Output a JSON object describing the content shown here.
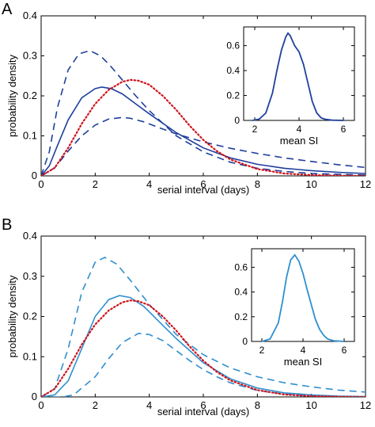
{
  "colors": {
    "panelA_blue": "#1f3f9c",
    "panelB_blue": "#2f8fd0",
    "red": "#d0141c"
  },
  "chart_data": [
    {
      "panel": "A",
      "type": "line",
      "xlabel": "serial interval (days)",
      "ylabel": "probability density",
      "xlim": [
        0,
        12
      ],
      "ylim": [
        0,
        0.4
      ],
      "xticks": [
        0,
        2,
        4,
        6,
        8,
        10,
        12
      ],
      "yticks": [
        0,
        0.1,
        0.2,
        0.3,
        0.4
      ],
      "series": [
        {
          "style": "solid",
          "color": "#1f3f9c",
          "x": [
            0,
            0.3,
            0.6,
            1.0,
            1.5,
            2.0,
            2.25,
            2.6,
            3.0,
            3.5,
            4.0,
            5.0,
            6.0,
            7.0,
            8.0,
            9.0,
            10.0,
            11.0,
            12.0
          ],
          "y": [
            0,
            0.025,
            0.075,
            0.14,
            0.195,
            0.218,
            0.222,
            0.218,
            0.205,
            0.18,
            0.155,
            0.108,
            0.07,
            0.045,
            0.029,
            0.019,
            0.013,
            0.009,
            0.006
          ]
        },
        {
          "style": "dashed",
          "color": "#1f3f9c",
          "x": [
            0,
            0.3,
            0.6,
            1.0,
            1.4,
            1.8,
            2.2,
            2.6,
            3.0,
            3.5,
            4.0,
            5.0,
            6.0,
            7.0,
            8.0,
            9.0,
            10.0,
            11.0,
            12.0
          ],
          "y": [
            0,
            0.06,
            0.17,
            0.265,
            0.305,
            0.313,
            0.3,
            0.272,
            0.24,
            0.2,
            0.163,
            0.1,
            0.06,
            0.034,
            0.019,
            0.011,
            0.006,
            0.004,
            0.002
          ]
        },
        {
          "style": "dashed",
          "color": "#1f3f9c",
          "x": [
            0,
            0.5,
            1.0,
            1.5,
            2.0,
            2.5,
            3.0,
            3.3,
            3.8,
            4.5,
            5.0,
            6.0,
            7.0,
            8.0,
            9.0,
            10.0,
            11.0,
            12.0
          ],
          "y": [
            0,
            0.02,
            0.062,
            0.1,
            0.127,
            0.142,
            0.146,
            0.144,
            0.135,
            0.117,
            0.105,
            0.085,
            0.069,
            0.056,
            0.045,
            0.036,
            0.028,
            0.021
          ]
        },
        {
          "style": "dotted",
          "color": "#d0141c",
          "x": [
            0,
            0.5,
            1.0,
            1.5,
            2.0,
            2.5,
            3.0,
            3.3,
            3.6,
            4.0,
            4.5,
            5.0,
            5.5,
            6.0,
            6.5,
            7.0,
            8.0,
            9.0,
            10.0,
            11.0,
            12.0
          ],
          "y": [
            0,
            0.02,
            0.07,
            0.13,
            0.18,
            0.215,
            0.235,
            0.24,
            0.238,
            0.228,
            0.2,
            0.165,
            0.125,
            0.09,
            0.062,
            0.041,
            0.017,
            0.006,
            0.002,
            0.0005,
            0
          ]
        }
      ],
      "inset": {
        "xlabel": "mean SI",
        "xlim": [
          1.5,
          6.5
        ],
        "ylim": [
          0,
          0.75
        ],
        "xticks": [
          2,
          4,
          6
        ],
        "yticks": [
          0,
          0.2,
          0.4,
          0.6
        ],
        "color": "#1f3f9c",
        "x": [
          1.9,
          2.2,
          2.5,
          2.8,
          3.0,
          3.2,
          3.4,
          3.5,
          3.6,
          3.8,
          4.0,
          4.2,
          4.4,
          4.6,
          4.8,
          5.0,
          5.2,
          5.5,
          6.0
        ],
        "y": [
          0,
          0.01,
          0.06,
          0.22,
          0.4,
          0.56,
          0.67,
          0.7,
          0.68,
          0.6,
          0.55,
          0.45,
          0.3,
          0.15,
          0.06,
          0.02,
          0.008,
          0.002,
          0
        ]
      }
    },
    {
      "panel": "B",
      "type": "line",
      "xlabel": "serial interval (days)",
      "ylabel": "probability density",
      "xlim": [
        0,
        12
      ],
      "ylim": [
        0,
        0.4
      ],
      "xticks": [
        0,
        2,
        4,
        6,
        8,
        10,
        12
      ],
      "yticks": [
        0,
        0.1,
        0.2,
        0.3,
        0.4
      ],
      "series": [
        {
          "style": "solid",
          "color": "#2f8fd0",
          "x": [
            0,
            0.5,
            1.0,
            1.5,
            2.0,
            2.5,
            2.9,
            3.3,
            3.8,
            4.5,
            5.0,
            6.0,
            7.0,
            8.0,
            9.0,
            10.0,
            11.0,
            12.0
          ],
          "y": [
            0,
            0.005,
            0.04,
            0.12,
            0.2,
            0.242,
            0.252,
            0.247,
            0.225,
            0.178,
            0.145,
            0.085,
            0.045,
            0.022,
            0.01,
            0.005,
            0.002,
            0.001
          ]
        },
        {
          "style": "dashed",
          "color": "#2f8fd0",
          "x": [
            0,
            0.5,
            1.0,
            1.5,
            2.0,
            2.35,
            2.8,
            3.3,
            4.0,
            5.0,
            6.0,
            7.0,
            8.0,
            9.0,
            10.0,
            11.0,
            12.0
          ],
          "y": [
            0,
            0.02,
            0.12,
            0.26,
            0.335,
            0.347,
            0.33,
            0.29,
            0.23,
            0.155,
            0.105,
            0.072,
            0.05,
            0.035,
            0.025,
            0.017,
            0.012
          ]
        },
        {
          "style": "dashed",
          "color": "#2f8fd0",
          "x": [
            0,
            0.8,
            1.2,
            2.0,
            2.5,
            3.0,
            3.6,
            4.0,
            4.5,
            5.0,
            5.5,
            6.0,
            6.5,
            7.0,
            8.0,
            9.0,
            10.0,
            11.0,
            12.0
          ],
          "y": [
            0,
            0,
            0.005,
            0.05,
            0.095,
            0.135,
            0.158,
            0.155,
            0.14,
            0.115,
            0.09,
            0.068,
            0.05,
            0.035,
            0.016,
            0.007,
            0.003,
            0.001,
            0
          ]
        },
        {
          "style": "dotted",
          "color": "#d0141c",
          "x": [
            0,
            0.5,
            1.0,
            1.5,
            2.0,
            2.5,
            3.0,
            3.3,
            3.6,
            4.0,
            4.5,
            5.0,
            5.5,
            6.0,
            6.5,
            7.0,
            8.0,
            9.0,
            10.0,
            11.0,
            12.0
          ],
          "y": [
            0,
            0.02,
            0.07,
            0.13,
            0.18,
            0.215,
            0.235,
            0.24,
            0.238,
            0.228,
            0.2,
            0.165,
            0.125,
            0.09,
            0.062,
            0.041,
            0.017,
            0.006,
            0.002,
            0.0005,
            0
          ]
        }
      ],
      "inset": {
        "xlabel": "mean SI",
        "xlim": [
          1.5,
          6.5
        ],
        "ylim": [
          0,
          0.75
        ],
        "xticks": [
          2,
          4,
          6
        ],
        "yticks": [
          0,
          0.2,
          0.4,
          0.6
        ],
        "color": "#2f8fd0",
        "x": [
          2.0,
          2.4,
          2.8,
          3.0,
          3.2,
          3.4,
          3.6,
          3.8,
          4.0,
          4.2,
          4.4,
          4.6,
          4.8,
          5.0,
          5.2,
          5.5,
          6.0
        ],
        "y": [
          0,
          0.02,
          0.15,
          0.32,
          0.52,
          0.66,
          0.7,
          0.65,
          0.55,
          0.42,
          0.3,
          0.18,
          0.1,
          0.05,
          0.02,
          0.005,
          0
        ]
      }
    }
  ]
}
